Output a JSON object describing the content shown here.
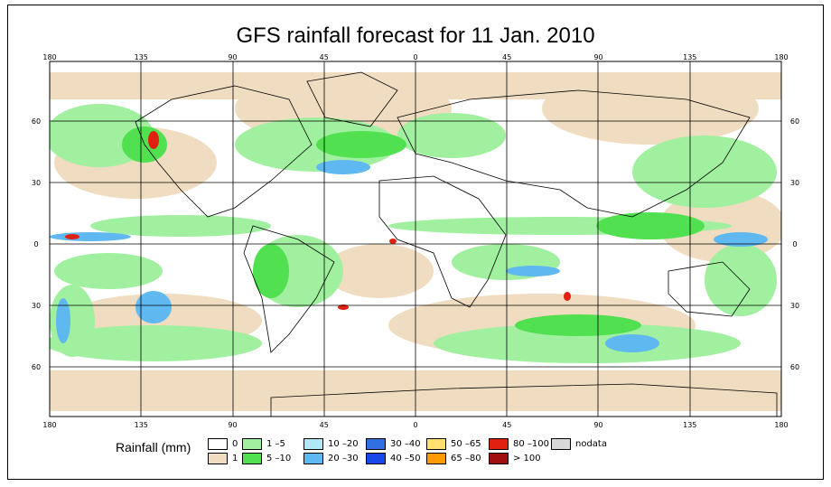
{
  "title": "GFS rainfall forecast for 11 Jan. 2010",
  "map": {
    "lon_ticks": [
      "180",
      "135",
      "90",
      "45",
      "0",
      "45",
      "90",
      "135",
      "180"
    ],
    "lat_ticks": [
      "60",
      "30",
      "0",
      "30",
      "60"
    ],
    "land_color": "#ffffff",
    "ocean_color": "#ffffff"
  },
  "legend": {
    "title": "Rainfall (mm)",
    "items": [
      {
        "label": "0",
        "color": "#ffffff"
      },
      {
        "label": "1",
        "color": "#f0dcc0"
      },
      {
        "label": "1 –5",
        "color": "#a0f0a0"
      },
      {
        "label": "5 –10",
        "color": "#50e050"
      },
      {
        "label": "10 –20",
        "color": "#b0e8f8"
      },
      {
        "label": "20 –30",
        "color": "#60b8f0"
      },
      {
        "label": "30 –40",
        "color": "#3070e0"
      },
      {
        "label": "40 –50",
        "color": "#1848e8"
      },
      {
        "label": "50 –65",
        "color": "#ffe070"
      },
      {
        "label": "65 –80",
        "color": "#ff9a00"
      },
      {
        "label": "80 –100",
        "color": "#e02010"
      },
      {
        "label": "> 100",
        "color": "#a01010"
      },
      {
        "label": "nodata",
        "color": "#d8d8d8"
      }
    ]
  }
}
